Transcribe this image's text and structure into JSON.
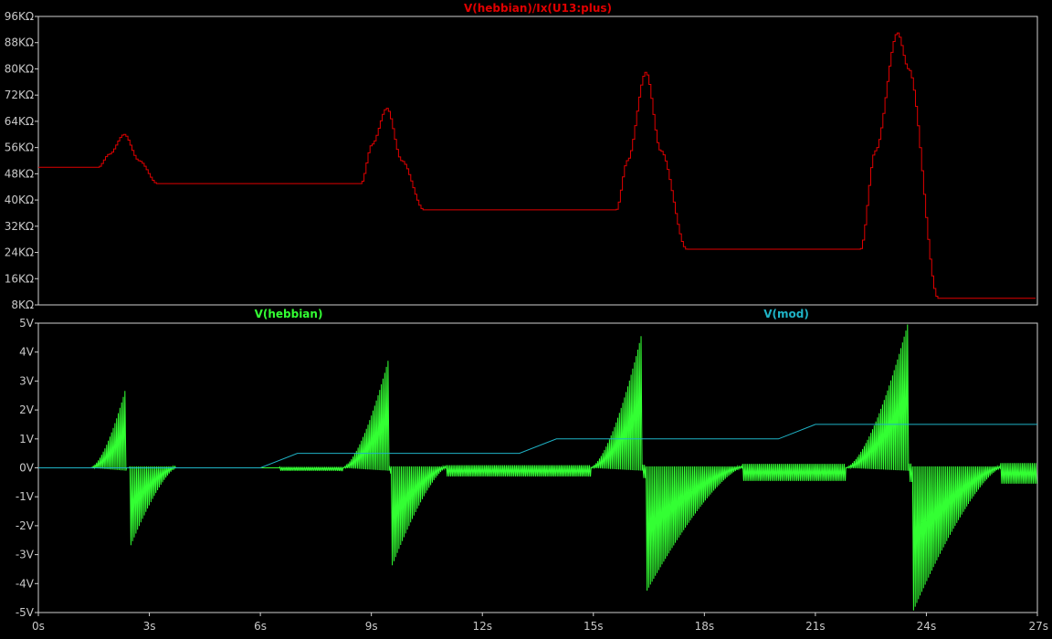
{
  "colors": {
    "background": "#000000",
    "frame": "#cfcfcf",
    "tick_text": "#c8c8c8",
    "series_red": "#e00000",
    "series_green": "#33ff33",
    "series_cyan": "#1fb3c6"
  },
  "chart_data": [
    {
      "type": "line",
      "panel": "top",
      "title": "V(hebbian)/Ix(U13:plus)",
      "x_unit": "s",
      "xlim": [
        0,
        27
      ],
      "y_unit": "KΩ",
      "ylim": [
        8,
        96
      ],
      "y_ticks": [
        "96KΩ",
        "88KΩ",
        "80KΩ",
        "72KΩ",
        "64KΩ",
        "56KΩ",
        "48KΩ",
        "40KΩ",
        "32KΩ",
        "24KΩ",
        "16KΩ",
        "8KΩ"
      ],
      "y_tick_values": [
        96,
        88,
        80,
        72,
        64,
        56,
        48,
        40,
        32,
        24,
        16,
        8
      ],
      "grid": false,
      "series": [
        {
          "name": "V(hebbian)/Ix(U13:plus)",
          "color": "#e00000",
          "x": [
            0,
            1.6,
            1.9,
            2.3,
            2.7,
            3.2,
            8.7,
            9.0,
            9.4,
            9.8,
            10.4,
            15.6,
            15.9,
            16.4,
            16.8,
            17.5,
            22.2,
            22.6,
            23.2,
            23.5,
            24.3,
            27
          ],
          "y": [
            50,
            50,
            54,
            60,
            52,
            45,
            45,
            57,
            68,
            52,
            37,
            37,
            52,
            79,
            55,
            25,
            25,
            55,
            91,
            80,
            10,
            10
          ]
        }
      ]
    },
    {
      "type": "line",
      "panel": "bottom",
      "x_unit": "s",
      "xlim": [
        0,
        27
      ],
      "x_ticks": [
        "0s",
        "3s",
        "6s",
        "9s",
        "12s",
        "15s",
        "18s",
        "21s",
        "24s",
        "27s"
      ],
      "x_tick_values": [
        0,
        3,
        6,
        9,
        12,
        15,
        18,
        21,
        24,
        27
      ],
      "ylim": [
        -5,
        5
      ],
      "y_ticks": [
        "5V",
        "4V",
        "3V",
        "2V",
        "1V",
        "0V",
        "-1V",
        "-2V",
        "-3V",
        "-4V",
        "-5V"
      ],
      "y_tick_values": [
        5,
        4,
        3,
        2,
        1,
        0,
        -1,
        -2,
        -3,
        -4,
        -5
      ],
      "grid": false,
      "series": [
        {
          "name": "V(hebbian)",
          "color": "#33ff33",
          "kind": "oscillation",
          "baseline_noise_ripple": [
            {
              "x_start": 0,
              "x_end": 6.5,
              "amplitude": 0
            },
            {
              "x_start": 6.5,
              "x_end": 8.0,
              "amplitude": 0.1
            },
            {
              "x_start": 11.0,
              "x_end": 14.8,
              "amplitude": 0.3
            },
            {
              "x_start": 19.0,
              "x_end": 22.0,
              "amplitude": 0.45
            },
            {
              "x_start": 26.0,
              "x_end": 27.0,
              "amplitude": 0.55
            }
          ],
          "bursts": [
            {
              "x_start": 1.4,
              "x_end": 2.35,
              "peak_max": 2.7,
              "neg_start": 2.45,
              "neg_end": 3.7,
              "neg_min": -2.75
            },
            {
              "x_start": 8.2,
              "x_end": 9.45,
              "peak_max": 3.7,
              "neg_start": 9.5,
              "neg_end": 11.0,
              "neg_min": -3.5
            },
            {
              "x_start": 14.9,
              "x_end": 16.3,
              "peak_max": 4.6,
              "neg_start": 16.4,
              "neg_end": 19.0,
              "neg_min": -4.3
            },
            {
              "x_start": 21.8,
              "x_end": 23.5,
              "peak_max": 5.0,
              "neg_start": 23.6,
              "neg_end": 26.0,
              "neg_min": -5.0
            }
          ]
        },
        {
          "name": "V(mod)",
          "color": "#1fb3c6",
          "x": [
            0,
            6.0,
            7.0,
            13.0,
            14.0,
            20.0,
            21.0,
            27
          ],
          "y": [
            0,
            0,
            0.5,
            0.5,
            1.0,
            1.0,
            1.5,
            1.5
          ]
        }
      ]
    }
  ]
}
